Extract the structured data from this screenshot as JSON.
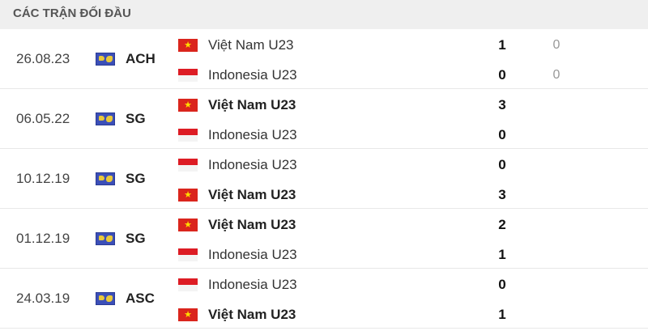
{
  "header": {
    "title": "CÁC TRẬN ĐỐI ĐẦU"
  },
  "matches": [
    {
      "date": "26.08.23",
      "competition": "ACH",
      "teams": [
        {
          "name": "Việt Nam U23",
          "flag": "vietnam",
          "score": "1",
          "score2": "0",
          "winner": false
        },
        {
          "name": "Indonesia U23",
          "flag": "indonesia",
          "score": "0",
          "score2": "0",
          "winner": false
        }
      ]
    },
    {
      "date": "06.05.22",
      "competition": "SG",
      "teams": [
        {
          "name": "Việt Nam U23",
          "flag": "vietnam",
          "score": "3",
          "winner": true
        },
        {
          "name": "Indonesia U23",
          "flag": "indonesia",
          "score": "0",
          "winner": false
        }
      ]
    },
    {
      "date": "10.12.19",
      "competition": "SG",
      "teams": [
        {
          "name": "Indonesia U23",
          "flag": "indonesia",
          "score": "0",
          "winner": false
        },
        {
          "name": "Việt Nam U23",
          "flag": "vietnam",
          "score": "3",
          "winner": true
        }
      ]
    },
    {
      "date": "01.12.19",
      "competition": "SG",
      "teams": [
        {
          "name": "Việt Nam U23",
          "flag": "vietnam",
          "score": "2",
          "winner": true
        },
        {
          "name": "Indonesia U23",
          "flag": "indonesia",
          "score": "1",
          "winner": false
        }
      ]
    },
    {
      "date": "24.03.19",
      "competition": "ASC",
      "teams": [
        {
          "name": "Indonesia U23",
          "flag": "indonesia",
          "score": "0",
          "winner": false
        },
        {
          "name": "Việt Nam U23",
          "flag": "vietnam",
          "score": "1",
          "winner": true
        }
      ]
    }
  ],
  "colors": {
    "header_bg": "#efefef",
    "vietnam_red": "#da251d",
    "indonesia_red": "#dd1c24",
    "competition_icon": "#3b4fb8"
  }
}
